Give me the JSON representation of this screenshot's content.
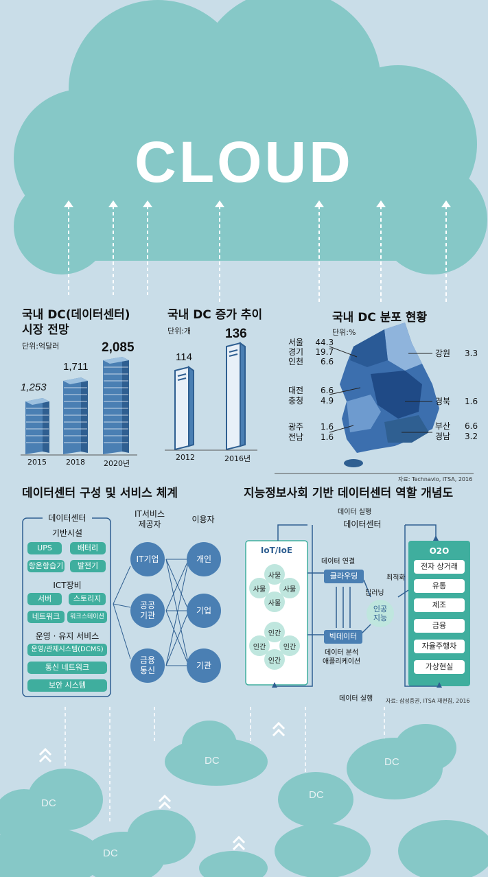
{
  "cloud_title": "CLOUD",
  "market": {
    "title_line1": "국내 DC(데이터센터)",
    "title_line2": "시장 전망",
    "unit": "단위:억달러",
    "bars": [
      {
        "year": "2015",
        "value": "1,253",
        "value_num": 1253
      },
      {
        "year": "2018",
        "value": "1,711",
        "value_num": 1711
      },
      {
        "year": "2020년",
        "value": "2,085",
        "value_num": 2085
      }
    ]
  },
  "growth": {
    "title": "국내 DC 증가 추이",
    "unit": "단위:개",
    "bars": [
      {
        "year": "2012",
        "value": "114",
        "value_num": 114
      },
      {
        "year": "2016년",
        "value": "136",
        "value_num": 136
      }
    ]
  },
  "distribution": {
    "title": "국내 DC 분포 현황",
    "unit": "단위:%",
    "left": [
      {
        "name": "서울",
        "value": "44.3"
      },
      {
        "name": "경기",
        "value": "19.7"
      },
      {
        "name": "인천",
        "value": "6.6"
      },
      {
        "name": "대전",
        "value": "6.6"
      },
      {
        "name": "충청",
        "value": "4.9"
      },
      {
        "name": "광주",
        "value": "1.6"
      },
      {
        "name": "전남",
        "value": "1.6"
      }
    ],
    "right": [
      {
        "name": "강원",
        "value": "3.3"
      },
      {
        "name": "경북",
        "value": "1.6"
      },
      {
        "name": "부산",
        "value": "6.6"
      },
      {
        "name": "경남",
        "value": "3.2"
      }
    ],
    "source": "자료: Technavio, ITSA, 2016"
  },
  "structure": {
    "title": "데이터센터 구성 및 서비스 체계",
    "dc_label": "데이터센터",
    "infra_label": "기반시설",
    "infra_items": [
      "UPS",
      "배터리",
      "항온항습기",
      "발전기"
    ],
    "ict_label": "ICT장비",
    "ict_items": [
      "서버",
      "스토리지",
      "네트워크",
      "워크스테이션"
    ],
    "ops_label": "운영 · 유지 서비스",
    "ops_items": [
      "운영/관제시스템(DCMS)",
      "통신 네트워크",
      "보안 시스템"
    ],
    "provider_header": "IT서비스\n제공자",
    "user_header": "이용자",
    "providers": [
      "IT기업",
      "공공\n기관",
      "금융\n통신"
    ],
    "users": [
      "개인",
      "기업",
      "기관"
    ]
  },
  "role": {
    "title": "지능정보사회 기반 데이터센터 역할 개념도",
    "exec_top": "데이터 실행",
    "dc_label": "데이터센터",
    "iot_label": "IoT/IoE",
    "things": [
      "사물",
      "사물",
      "사물",
      "사물"
    ],
    "humans": [
      "인간",
      "인간",
      "인간",
      "인간"
    ],
    "connect_label": "데이터 연결",
    "clouding": "클라우딩",
    "bigdata": "빅데이터",
    "analysis_label": "데이터 분석\n애플리케이션",
    "deep_learning": "딥러닝",
    "optimize": "최적화",
    "ai": "인공\n지능",
    "o2o_label": "O2O",
    "o2o_items": [
      "전자 상거래",
      "유통",
      "제조",
      "금융",
      "자율주행차",
      "가상현실"
    ],
    "exec_bottom": "데이터 실행",
    "source": "자료: 삼성증권, ITSA 재편집, 2016"
  },
  "bottom_clouds": [
    "DC",
    "DC",
    "DC",
    "DC",
    "DC"
  ],
  "colors": {
    "cloud": "#86c8c7",
    "sky": "#c9dde8",
    "blue": "#4a7fb3",
    "teal": "#3fae9e"
  }
}
